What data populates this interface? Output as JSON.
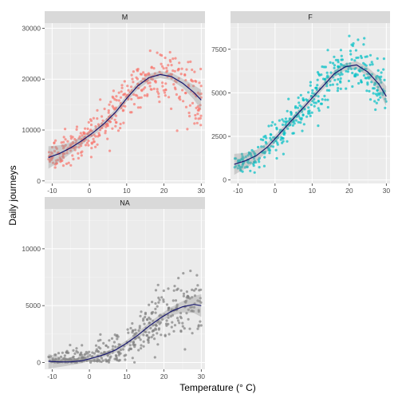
{
  "chart_data": {
    "type": "scatter",
    "xlabel": "Temperature (° C)",
    "ylabel": "Daily journeys",
    "fit_color": "#191970",
    "band_color": "#999999",
    "panel_bg": "#ebebeb",
    "strip_bg": "#d9d9d9",
    "panels": [
      {
        "strip": "M",
        "color": "#f8766d",
        "xlim": [
          -12,
          31
        ],
        "ylim": [
          -500,
          31000
        ],
        "xticks": [
          -10,
          0,
          10,
          20,
          30
        ],
        "yticks": [
          0,
          10000,
          20000,
          30000
        ],
        "n_points": 420,
        "fit_x": [
          -11,
          -8,
          -5,
          -2,
          1,
          4,
          7,
          10,
          13,
          16,
          19,
          22,
          25,
          28,
          30
        ],
        "fit_y": [
          4600,
          5400,
          6500,
          7900,
          9500,
          11300,
          13500,
          16200,
          18700,
          20300,
          20900,
          20500,
          19200,
          17400,
          15900
        ],
        "band_halfwidth": [
          2200,
          1600,
          1100,
          800,
          650,
          600,
          600,
          650,
          700,
          700,
          700,
          750,
          900,
          1400,
          2000
        ]
      },
      {
        "strip": "F",
        "color": "#00bfc4",
        "xlim": [
          -12,
          31
        ],
        "ylim": [
          -200,
          9000
        ],
        "xticks": [
          -10,
          0,
          10,
          20,
          30
        ],
        "yticks": [
          0,
          2500,
          5000,
          7500
        ],
        "n_points": 420,
        "fit_x": [
          -11,
          -8,
          -5,
          -2,
          1,
          4,
          7,
          10,
          13,
          16,
          19,
          22,
          25,
          28,
          30
        ],
        "fit_y": [
          900,
          1100,
          1400,
          1900,
          2600,
          3300,
          4000,
          4700,
          5400,
          6100,
          6500,
          6600,
          6200,
          5500,
          4800
        ],
        "band_halfwidth": [
          600,
          450,
          330,
          250,
          200,
          180,
          180,
          190,
          200,
          200,
          200,
          210,
          260,
          400,
          580
        ]
      },
      {
        "strip": "NA",
        "color": "#808080",
        "xlim": [
          -12,
          31
        ],
        "ylim": [
          -600,
          13500
        ],
        "xticks": [
          -10,
          0,
          10,
          20,
          30
        ],
        "yticks": [
          0,
          5000,
          10000
        ],
        "n_points": 420,
        "fit_x": [
          -11,
          -8,
          -5,
          -2,
          1,
          4,
          7,
          10,
          13,
          16,
          19,
          22,
          25,
          28,
          30
        ],
        "fit_y": [
          100,
          50,
          60,
          150,
          400,
          700,
          1100,
          1700,
          2400,
          3200,
          3900,
          4500,
          4900,
          5100,
          5000
        ],
        "band_halfwidth": [
          650,
          450,
          300,
          220,
          200,
          200,
          220,
          250,
          280,
          300,
          330,
          380,
          500,
          750,
          1000
        ]
      }
    ]
  }
}
